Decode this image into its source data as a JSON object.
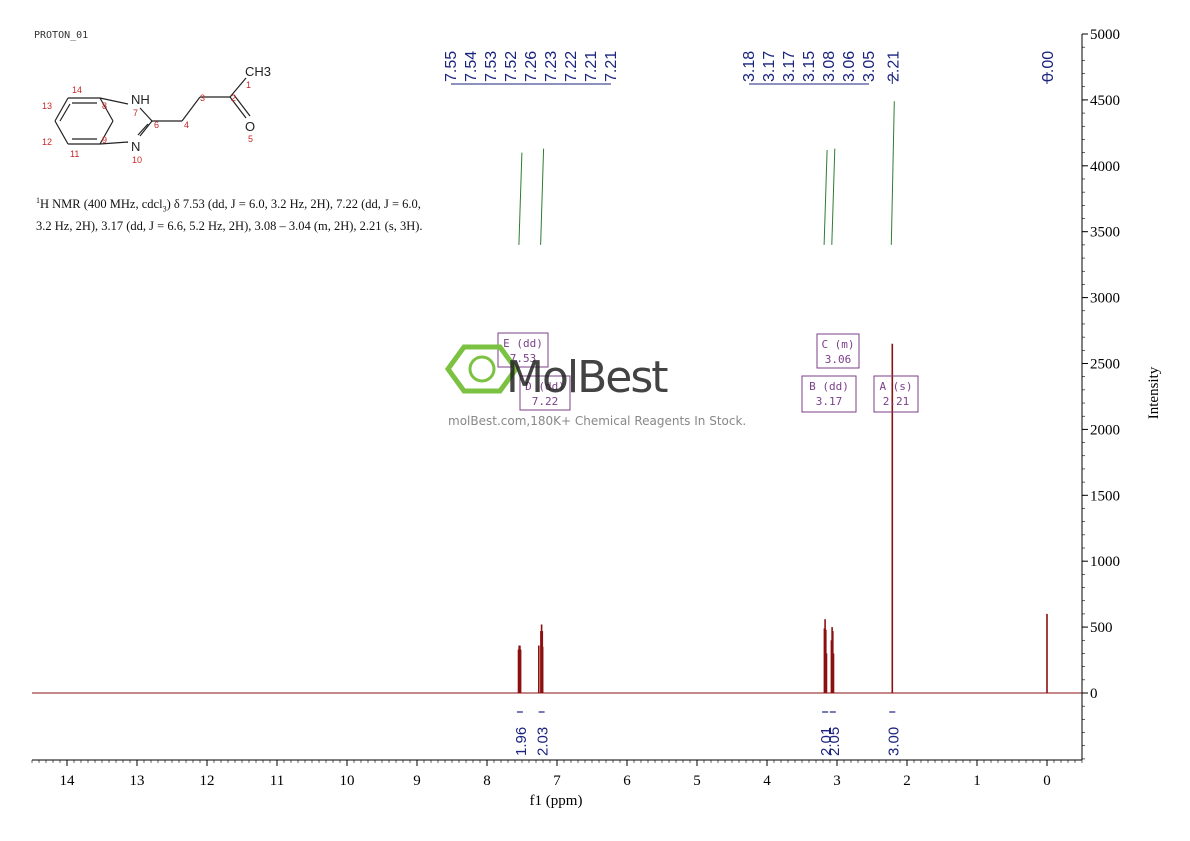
{
  "experiment_label": "PROTON_01",
  "description": {
    "nucleus_sup": "1",
    "prefix": "H NMR (400 MHz, cdcl",
    "solvent_sub": "3",
    "text": ") δ 7.53 (dd, J = 6.0, 3.2 Hz, 2H), 7.22 (dd, J = 6.0, 3.2 Hz, 2H), 3.17 (dd, J = 6.6, 5.2 Hz, 2H), 3.08 – 3.04 (m, 2H), 2.21 (s, 3H)."
  },
  "watermark": {
    "brand": "MolBest",
    "tagline": "molBest.com,180K+ Chemical Reagents In Stock."
  },
  "structure": {
    "atoms": [
      {
        "id": "1",
        "label": "CH3"
      },
      {
        "id": "2",
        "label": ""
      },
      {
        "id": "3",
        "label": ""
      },
      {
        "id": "4",
        "label": ""
      },
      {
        "id": "5",
        "label": "O"
      },
      {
        "id": "6",
        "label": ""
      },
      {
        "id": "7",
        "label": "NH"
      },
      {
        "id": "8",
        "label": ""
      },
      {
        "id": "9",
        "label": ""
      },
      {
        "id": "10",
        "label": "N"
      },
      {
        "id": "11",
        "label": ""
      },
      {
        "id": "12",
        "label": ""
      },
      {
        "id": "13",
        "label": ""
      },
      {
        "id": "14",
        "label": ""
      }
    ]
  },
  "chart_data": {
    "type": "line",
    "xlabel": "f1 (ppm)",
    "ylabel": "Intensity",
    "xlim": [
      14.5,
      -0.5
    ],
    "ylim": [
      -500,
      5000
    ],
    "x_ticks": [
      14,
      13,
      12,
      11,
      10,
      9,
      8,
      7,
      6,
      5,
      4,
      3,
      2,
      1,
      0
    ],
    "y_ticks": [
      0,
      500,
      1000,
      1500,
      2000,
      2500,
      3000,
      3500,
      4000,
      4500,
      5000
    ],
    "peaks": [
      {
        "ppm": 7.55,
        "height": 330
      },
      {
        "ppm": 7.54,
        "height": 360
      },
      {
        "ppm": 7.53,
        "height": 360
      },
      {
        "ppm": 7.52,
        "height": 330
      },
      {
        "ppm": 7.26,
        "height": 360
      },
      {
        "ppm": 7.23,
        "height": 470
      },
      {
        "ppm": 7.22,
        "height": 520
      },
      {
        "ppm": 7.21,
        "height": 470
      },
      {
        "ppm": 7.205,
        "height": 350
      },
      {
        "ppm": 3.18,
        "height": 490
      },
      {
        "ppm": 3.17,
        "height": 560
      },
      {
        "ppm": 3.16,
        "height": 480
      },
      {
        "ppm": 3.15,
        "height": 300
      },
      {
        "ppm": 3.08,
        "height": 400
      },
      {
        "ppm": 3.07,
        "height": 500
      },
      {
        "ppm": 3.06,
        "height": 470
      },
      {
        "ppm": 3.05,
        "height": 300
      },
      {
        "ppm": 2.21,
        "height": 2650
      },
      {
        "ppm": 0.0,
        "height": 600
      }
    ],
    "peak_labels": {
      "groups": [
        {
          "labels": [
            "7.55",
            "7.54",
            "7.53",
            "7.52",
            "7.26",
            "7.23",
            "7.22",
            "7.21",
            "7.21"
          ],
          "anchor_ppm": 7.38
        },
        {
          "labels": [
            "3.18",
            "3.17",
            "3.17",
            "3.15",
            "3.08",
            "3.06",
            "3.05"
          ],
          "anchor_ppm": 3.12
        },
        {
          "labels": [
            "2.21"
          ],
          "anchor_ppm": 2.21
        },
        {
          "labels": [
            "0.00"
          ],
          "anchor_ppm": 0.0
        }
      ]
    },
    "multiplets": [
      {
        "letter": "E",
        "type": "dd",
        "shift": "7.53"
      },
      {
        "letter": "D",
        "type": "dd",
        "shift": "7.22"
      },
      {
        "letter": "C",
        "type": "m",
        "shift": "3.06"
      },
      {
        "letter": "B",
        "type": "dd",
        "shift": "3.17"
      },
      {
        "letter": "A",
        "type": "s",
        "shift": "2.21"
      }
    ],
    "integrals": [
      {
        "ppm": 7.53,
        "value": "1.96"
      },
      {
        "ppm": 7.22,
        "value": "2.03"
      },
      {
        "ppm": 3.17,
        "value": "2.01"
      },
      {
        "ppm": 3.06,
        "value": "2.05"
      },
      {
        "ppm": 2.21,
        "value": "3.00"
      }
    ]
  },
  "colors": {
    "spectrum": "#8b1010",
    "integral": "#2e7d32",
    "labels": "#1a237e",
    "multiplet_box": "#7b3f8a",
    "watermark_green": "#7cc242"
  }
}
